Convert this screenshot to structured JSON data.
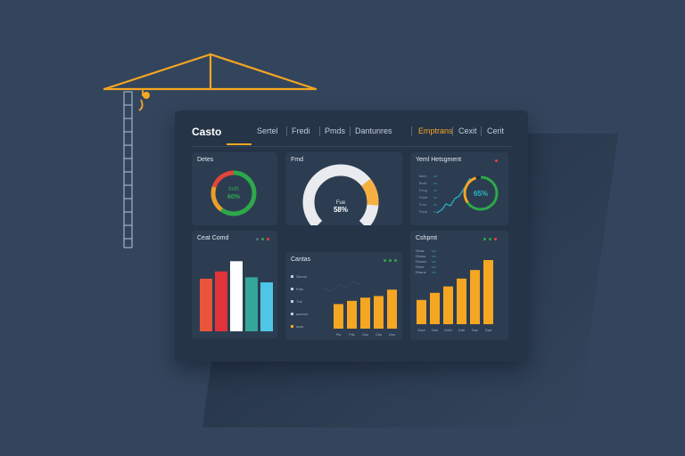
{
  "app": {
    "brand": "Casto"
  },
  "nav": {
    "items": [
      {
        "label": "Sertel"
      },
      {
        "label": "Fredi"
      },
      {
        "label": "Pmds"
      },
      {
        "label": "Dantunres"
      },
      {
        "label": "Emptrans",
        "active": true
      },
      {
        "label": "Cexit"
      },
      {
        "label": "Cerit"
      }
    ]
  },
  "cards": {
    "status": {
      "title": "Detes",
      "center_top": "fmfh",
      "center_value": "60%",
      "progress": 0.6,
      "colors": [
        "#2ea84a",
        "#e8a02b",
        "#e2453c"
      ]
    },
    "gauge": {
      "title": "Fmd",
      "center_top": "Fue",
      "center_value": "58%",
      "value_percent": 58,
      "colors": {
        "track": "#e9ebef",
        "accent": "#f5b041"
      }
    },
    "trend": {
      "title": "Yeml Hetsgment",
      "value": "65%",
      "progress": 0.65,
      "axis_labels": [
        "fatch",
        "Bndt",
        "Fzng",
        "Pmdt",
        "Frcn",
        "Fshe"
      ],
      "line_color": "#27b8c6"
    },
    "cost": {
      "title": "Ceat Comd",
      "values": [
        72,
        82,
        96,
        74,
        67
      ],
      "ylim": [
        0,
        100
      ],
      "colors": [
        "#e8553a",
        "#e2323a",
        "#ffffff",
        "#35a69a",
        "#4fc6e6"
      ],
      "dot_colors": [
        "#5a6a80",
        "#2ea84a",
        "#e2453c"
      ]
    },
    "costs": {
      "title": "Cantas",
      "legend": [
        "Genne",
        "Flda",
        "Tne",
        "asnesd",
        "suss"
      ],
      "values": [
        46,
        52,
        58,
        61,
        73
      ],
      "ylim": [
        0,
        100
      ],
      "categories": [
        "Fts",
        "Flts",
        "Gzs",
        "Cbs",
        "Dnz"
      ],
      "bar_color": "#f5a623",
      "dot_colors": [
        "#2ea84a",
        "#2ea84a",
        "#2ea84a"
      ]
    },
    "output": {
      "title": "Cshpmt",
      "legend": [
        "Ghas",
        "Dhass",
        "Dhusd",
        "Dhes",
        "Dhans"
      ],
      "values": [
        34,
        44,
        53,
        64,
        76,
        90
      ],
      "ylim": [
        0,
        100
      ],
      "categories": [
        "Dact",
        "Dad",
        "Ddet",
        "Dde",
        "Dac",
        "Dad"
      ],
      "bar_color": "#f5a623",
      "dot_colors": [
        "#2ea84a",
        "#2ea84a",
        "#e2453c"
      ]
    }
  }
}
